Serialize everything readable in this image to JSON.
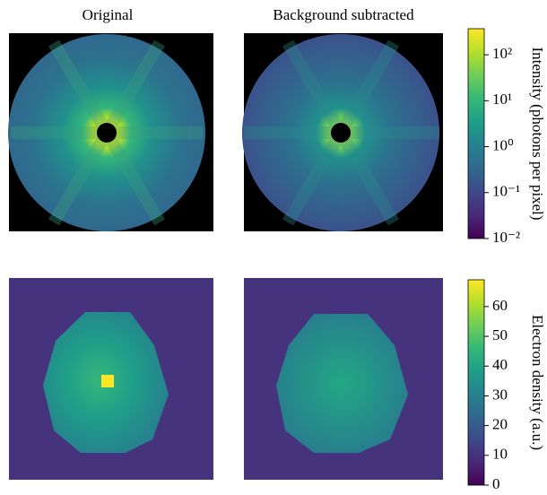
{
  "chart_data": [
    {
      "type": "image-colorbar",
      "panel_titles": [
        "Original",
        "Background subtracted"
      ],
      "colorbar_label": "Intensity (photons per pixel)",
      "colormap": "viridis",
      "scale": "log",
      "clim": [
        0.01,
        370
      ],
      "ticks": [
        {
          "value": 0.01,
          "label": "10⁻²"
        },
        {
          "value": 0.1,
          "label": "10⁻¹"
        },
        {
          "value": 1,
          "label": "10⁰"
        },
        {
          "value": 10,
          "label": "10¹"
        },
        {
          "value": 100,
          "label": "10²"
        }
      ]
    },
    {
      "type": "image-colorbar",
      "colorbar_label": "Electron density (a.u.)",
      "colormap": "viridis",
      "scale": "linear",
      "clim": [
        0,
        69
      ],
      "ticks": [
        0,
        10,
        20,
        30,
        40,
        50,
        60
      ]
    }
  ]
}
